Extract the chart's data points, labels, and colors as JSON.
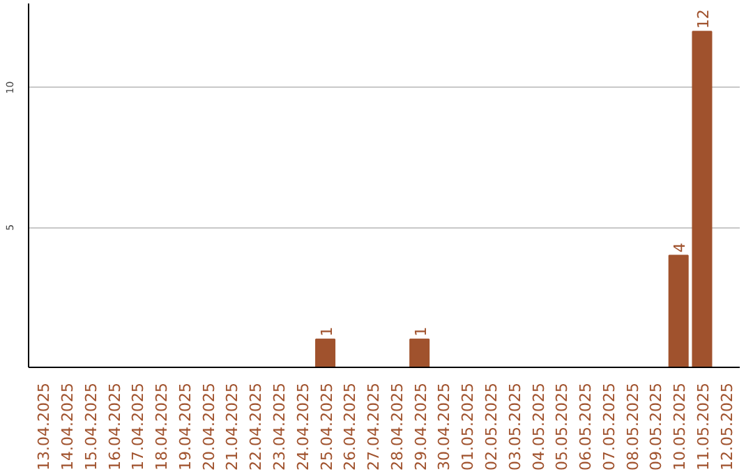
{
  "chart_data": {
    "type": "bar",
    "categories": [
      "13.04.2025",
      "14.04.2025",
      "15.04.2025",
      "16.04.2025",
      "17.04.2025",
      "18.04.2025",
      "19.04.2025",
      "20.04.2025",
      "21.04.2025",
      "22.04.2025",
      "23.04.2025",
      "24.04.2025",
      "25.04.2025",
      "26.04.2025",
      "27.04.2025",
      "28.04.2025",
      "29.04.2025",
      "30.04.2025",
      "01.05.2025",
      "02.05.2025",
      "03.05.2025",
      "04.05.2025",
      "05.05.2025",
      "06.05.2025",
      "07.05.2025",
      "08.05.2025",
      "09.05.2025",
      "10.05.2025",
      "11.05.2025",
      "12.05.2025"
    ],
    "values": [
      0,
      0,
      0,
      0,
      0,
      0,
      0,
      0,
      0,
      0,
      0,
      0,
      1,
      0,
      0,
      0,
      1,
      0,
      0,
      0,
      0,
      0,
      0,
      0,
      0,
      0,
      0,
      4,
      12,
      0
    ],
    "value_labels": [
      null,
      null,
      null,
      null,
      null,
      null,
      null,
      null,
      null,
      null,
      null,
      null,
      "1",
      null,
      null,
      null,
      "1",
      null,
      null,
      null,
      null,
      null,
      null,
      null,
      null,
      null,
      null,
      "4",
      "12",
      null
    ],
    "color": "#a0522d",
    "ylim": [
      0,
      13
    ],
    "yticks": [
      5,
      10
    ],
    "grid": "y"
  }
}
